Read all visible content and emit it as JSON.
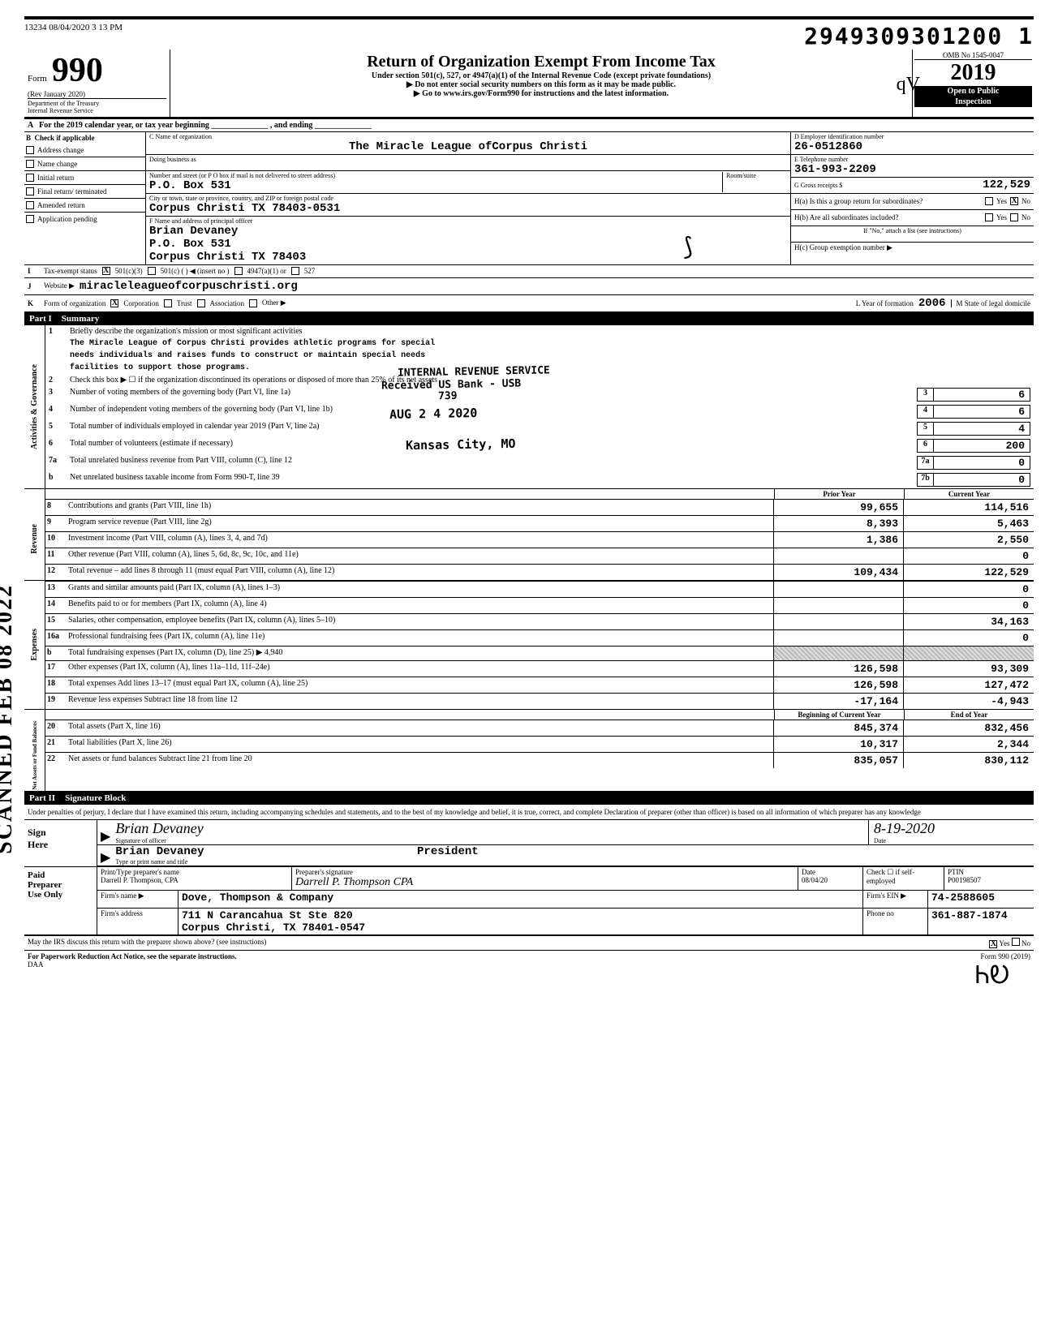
{
  "meta": {
    "batch": "13234 08/04/2020 3 13 PM",
    "barcode_num": "2949309301200 1"
  },
  "form_header": {
    "form_word": "Form",
    "form_number": "990",
    "rev": "(Rev January 2020)",
    "dept1": "Department of the Treasury",
    "dept2": "Internal Revenue Service",
    "title": "Return of Organization Exempt From Income Tax",
    "subtitle": "Under section 501(c), 527, or 4947(a)(1) of the Internal Revenue Code (except private foundations)",
    "arrow1": "▶ Do not enter social security numbers on this form as it may be made public.",
    "arrow2": "▶ Go to www.irs.gov/Form990 for instructions and the latest information.",
    "omb": "OMB No 1545-0047",
    "year": "2019",
    "open1": "Open to Public",
    "open2": "Inspection",
    "initials": "qV"
  },
  "line_a": "For the 2019 calendar year, or tax year beginning ______________ , and ending ______________",
  "section_b": {
    "header": "Check if applicable",
    "items": [
      "Address change",
      "Name change",
      "Initial return",
      "Final return/ terminated",
      "Amended return",
      "Application pending"
    ]
  },
  "section_c": {
    "name_label": "C Name of organization",
    "org_name": "The Miracle League ofCorpus Christi",
    "dba_label": "Doing business as",
    "addr_label": "Number and street (or P O box if mail is not delivered to street address)",
    "addr": "P.O. Box 531",
    "room_label": "Room/suite",
    "city_label": "City or town, state or province, country, and ZIP or foreign postal code",
    "city": "Corpus Christi          TX 78403-0531",
    "officer_label": "F Name and address of principal officer",
    "officer_name": "Brian Devaney",
    "officer_addr1": "P.O. Box 531",
    "officer_addr2": "Corpus Christi          TX  78403"
  },
  "section_d": {
    "ein_label": "D Employer identification number",
    "ein": "26-0512860",
    "tel_label": "E Telephone number",
    "tel": "361-993-2209",
    "gross_label": "G Gross receipts $",
    "gross": "122,529",
    "h_a": "H(a) Is this a group return for subordinates?",
    "h_b": "H(b) Are all subordinates included?",
    "h_note": "If \"No,\" attach a list (see instructions)",
    "h_c": "H(c) Group exemption number ▶",
    "yes": "Yes",
    "no": "No"
  },
  "row_i": {
    "label": "Tax-exempt status",
    "opts": [
      "501(c)(3)",
      "501(c) (    ) ◀ (insert no )",
      "4947(a)(1) or",
      "527"
    ]
  },
  "row_j": {
    "label": "Website ▶",
    "value": "miracleleagueofcorpuschristi.org"
  },
  "row_k": {
    "label": "Form of organization",
    "opts": [
      "Corporation",
      "Trust",
      "Association",
      "Other ▶"
    ],
    "l_label": "L  Year of formation",
    "l_val": "2006",
    "m_label": "M  State of legal domicile"
  },
  "part1": {
    "label": "Part I",
    "title": "Summary"
  },
  "governance": {
    "side": "Activities & Governance",
    "l1_label": "Briefly describe the organization's mission or most significant activities",
    "l1_a": "The Miracle League of Corpus Christi provides athletic programs for special",
    "l1_b": "needs individuals and raises funds to construct or maintain special needs",
    "l1_c": "facilities to support those programs.",
    "l2": "Check this box ▶ ☐ if the organization discontinued its operations or disposed of more than 25% of its net assets",
    "l3": "Number of voting members of the governing body (Part VI, line 1a)",
    "l4": "Number of independent voting members of the governing body (Part VI, line 1b)",
    "l5": "Total number of individuals employed in calendar year 2019 (Part V, line 2a)",
    "l6": "Total number of volunteers (estimate if necessary)",
    "l7a": "Total unrelated business revenue from Part VIII, column (C), line 12",
    "l7b": "Net unrelated business taxable income from Form 990-T, line 39",
    "v3": "6",
    "v4": "6",
    "v5": "4",
    "v6": "200",
    "v7a": "0",
    "v7b": "0"
  },
  "stamps": {
    "s1": "INTERNAL REVENUE SERVICE",
    "s2": "Received US Bank - USB",
    "s3": "AUG 2 4 2020",
    "s4": "Kansas City, MO",
    "s5": "739"
  },
  "cols": {
    "prior": "Prior Year",
    "current": "Current Year",
    "boy": "Beginning of Current Year",
    "eoy": "End of Year"
  },
  "revenue": {
    "side": "Revenue",
    "rows": [
      {
        "n": "8",
        "t": "Contributions and grants (Part VIII, line 1h)",
        "p": "99,655",
        "c": "114,516"
      },
      {
        "n": "9",
        "t": "Program service revenue (Part VIII, line 2g)",
        "p": "8,393",
        "c": "5,463"
      },
      {
        "n": "10",
        "t": "Investment income (Part VIII, column (A), lines 3, 4, and 7d)",
        "p": "1,386",
        "c": "2,550"
      },
      {
        "n": "11",
        "t": "Other revenue (Part VIII, column (A), lines 5, 6d, 8c, 9c, 10c, and 11e)",
        "p": "",
        "c": "0"
      },
      {
        "n": "12",
        "t": "Total revenue – add lines 8 through 11 (must equal Part VIII, column (A), line 12)",
        "p": "109,434",
        "c": "122,529"
      }
    ]
  },
  "expenses": {
    "side": "Expenses",
    "rows": [
      {
        "n": "13",
        "t": "Grants and similar amounts paid (Part IX, column (A), lines 1–3)",
        "p": "",
        "c": "0"
      },
      {
        "n": "14",
        "t": "Benefits paid to or for members (Part IX, column (A), line 4)",
        "p": "",
        "c": "0"
      },
      {
        "n": "15",
        "t": "Salaries, other compensation, employee benefits (Part IX, column (A), lines 5–10)",
        "p": "",
        "c": "34,163"
      },
      {
        "n": "16a",
        "t": "Professional fundraising fees (Part IX, column (A), line 11e)",
        "p": "",
        "c": "0"
      },
      {
        "n": "b",
        "t": "Total fundraising expenses (Part IX, column (D), line 25) ▶            4,940",
        "p": "shade",
        "c": "shade"
      },
      {
        "n": "17",
        "t": "Other expenses (Part IX, column (A), lines 11a–11d, 11f–24e)",
        "p": "126,598",
        "c": "93,309"
      },
      {
        "n": "18",
        "t": "Total expenses  Add lines 13–17 (must equal Part IX, column (A), line 25)",
        "p": "126,598",
        "c": "127,472"
      },
      {
        "n": "19",
        "t": "Revenue less expenses  Subtract line 18 from line 12",
        "p": "-17,164",
        "c": "-4,943"
      }
    ]
  },
  "netassets": {
    "side": "Net Assets or Fund Balances",
    "rows": [
      {
        "n": "20",
        "t": "Total assets (Part X, line 16)",
        "p": "845,374",
        "c": "832,456"
      },
      {
        "n": "21",
        "t": "Total liabilities (Part X, line 26)",
        "p": "10,317",
        "c": "2,344"
      },
      {
        "n": "22",
        "t": "Net assets or fund balances  Subtract line 21 from line 20",
        "p": "835,057",
        "c": "830,112"
      }
    ]
  },
  "part2": {
    "label": "Part II",
    "title": "Signature Block"
  },
  "sig": {
    "perjury": "Under penalties of perjury, I declare that I have examined this return, including accompanying schedules and statements, and to the best of my knowledge and belief, it is true, correct, and complete  Declaration of preparer (other than officer) is based on all information of which preparer has any knowledge",
    "sign": "Sign",
    "here": "Here",
    "sig_cursive": "Brian Devaney",
    "sig_label": "Signature of officer",
    "date_label": "Date",
    "date_val": "8-19-2020",
    "name_typed": "Brian Devaney",
    "title_typed": "President",
    "type_label": "Type or print name and title"
  },
  "paid": {
    "left1": "Paid",
    "left2": "Preparer",
    "left3": "Use Only",
    "h1": "Print/Type preparer's name",
    "h2": "Preparer's signature",
    "h3": "Date",
    "h4": "Check ☐ if self-employed",
    "h5": "PTIN",
    "name": "Darrell P. Thompson, CPA",
    "sig_cursive": "Darrell P. Thompson CPA",
    "date": "08/04/20",
    "ptin": "P00198507",
    "firm_label": "Firm's name    ▶",
    "firm": "Dove, Thompson & Company",
    "ein_label": "Firm's EIN ▶",
    "ein": "74-2588605",
    "addr_label": "Firm's address",
    "addr1": "711 N Carancahua St Ste 820",
    "addr2": "Corpus Christi, TX   78401-0547",
    "phone_label": "Phone no",
    "phone": "361-887-1874"
  },
  "footer": {
    "discuss": "May the IRS discuss this return with the preparer shown above? (see instructions)",
    "pra": "For Paperwork Reduction Act Notice, see the separate instructions.",
    "daa": "DAA",
    "form": "Form 990 (2019)",
    "yes": "Yes",
    "no": "No"
  },
  "scanned_stamp": "SCANNED FEB 08 2022"
}
